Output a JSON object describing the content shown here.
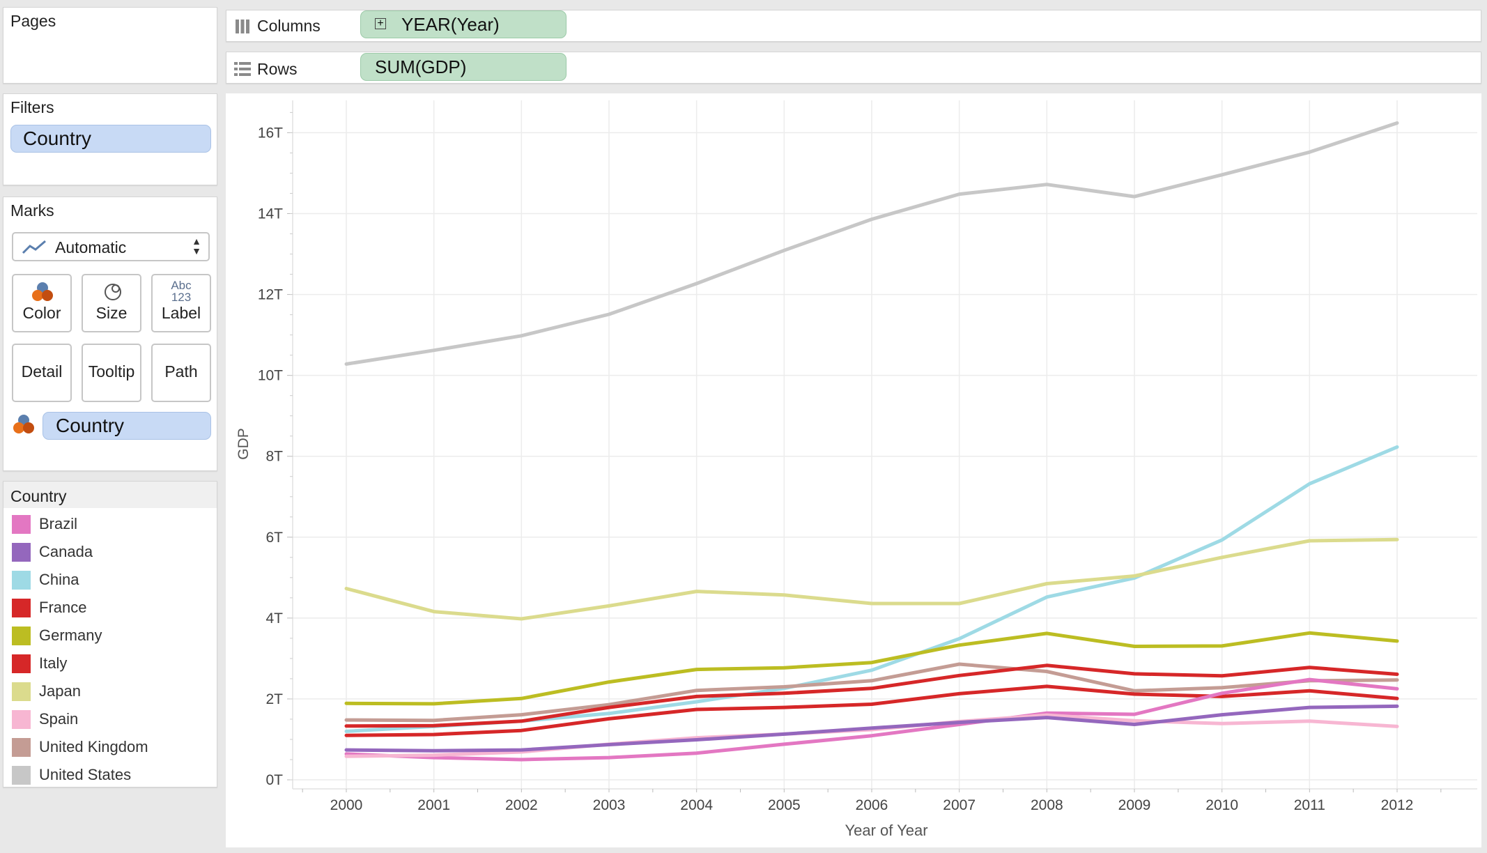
{
  "pages": {
    "title": "Pages"
  },
  "filters": {
    "title": "Filters",
    "pill": "Country"
  },
  "marks": {
    "title": "Marks",
    "type_select": "Automatic",
    "buttons": {
      "color": "Color",
      "size": "Size",
      "label": "Label",
      "label_icon": "Abc\n123",
      "detail": "Detail",
      "tooltip": "Tooltip",
      "path": "Path"
    },
    "color_pill": "Country"
  },
  "legend": {
    "title": "Country",
    "items": [
      {
        "name": "Brazil",
        "color": "#e377c2"
      },
      {
        "name": "Canada",
        "color": "#9467bd"
      },
      {
        "name": "China",
        "color": "#9edae5"
      },
      {
        "name": "France",
        "color": "#d62728"
      },
      {
        "name": "Germany",
        "color": "#bcbd22"
      },
      {
        "name": "Italy",
        "color": "#d62728"
      },
      {
        "name": "Japan",
        "color": "#dbdb8d"
      },
      {
        "name": "Spain",
        "color": "#f7b6d2"
      },
      {
        "name": "United Kingdom",
        "color": "#c49c94"
      },
      {
        "name": "United States",
        "color": "#c7c7c7"
      }
    ]
  },
  "shelves": {
    "columns_label": "Columns",
    "columns_pill": "YEAR(Year)",
    "rows_label": "Rows",
    "rows_pill": "SUM(GDP)"
  },
  "chart_data": {
    "type": "line",
    "xlabel": "Year of Year",
    "ylabel": "GDP",
    "x": [
      2000,
      2001,
      2002,
      2003,
      2004,
      2005,
      2006,
      2007,
      2008,
      2009,
      2010,
      2011,
      2012
    ],
    "ylim": [
      0,
      16.8
    ],
    "yticks": [
      0,
      2,
      4,
      6,
      8,
      10,
      12,
      14,
      16
    ],
    "ytick_labels": [
      "0T",
      "2T",
      "4T",
      "6T",
      "8T",
      "10T",
      "12T",
      "14T",
      "16T"
    ],
    "grid": true,
    "series": [
      {
        "name": "United States",
        "color": "#c7c7c7",
        "values": [
          10.28,
          10.62,
          10.98,
          11.51,
          12.27,
          13.09,
          13.86,
          14.48,
          14.72,
          14.42,
          14.96,
          15.52,
          16.24
        ]
      },
      {
        "name": "China",
        "color": "#9edae5",
        "values": [
          1.2,
          1.32,
          1.45,
          1.64,
          1.93,
          2.26,
          2.71,
          3.49,
          4.52,
          4.99,
          5.93,
          7.32,
          8.23
        ]
      },
      {
        "name": "Japan",
        "color": "#dbdb8d",
        "values": [
          4.73,
          4.16,
          3.98,
          4.3,
          4.66,
          4.57,
          4.36,
          4.36,
          4.85,
          5.04,
          5.5,
          5.91,
          5.94
        ]
      },
      {
        "name": "Germany",
        "color": "#bcbd22",
        "values": [
          1.89,
          1.88,
          2.01,
          2.42,
          2.73,
          2.77,
          2.9,
          3.33,
          3.62,
          3.3,
          3.31,
          3.63,
          3.43
        ]
      },
      {
        "name": "United Kingdom",
        "color": "#c49c94",
        "values": [
          1.48,
          1.47,
          1.61,
          1.86,
          2.21,
          2.3,
          2.45,
          2.86,
          2.68,
          2.2,
          2.28,
          2.45,
          2.47
        ]
      },
      {
        "name": "France",
        "color": "#d62728",
        "values": [
          1.33,
          1.34,
          1.45,
          1.79,
          2.06,
          2.14,
          2.26,
          2.58,
          2.83,
          2.62,
          2.57,
          2.78,
          2.61
        ]
      },
      {
        "name": "Italy",
        "color": "#d62728",
        "values": [
          1.1,
          1.12,
          1.22,
          1.51,
          1.74,
          1.79,
          1.87,
          2.13,
          2.31,
          2.12,
          2.06,
          2.2,
          2.01
        ]
      },
      {
        "name": "Brazil",
        "color": "#e377c2",
        "values": [
          0.64,
          0.55,
          0.5,
          0.55,
          0.66,
          0.88,
          1.09,
          1.37,
          1.65,
          1.62,
          2.14,
          2.48,
          2.25
        ]
      },
      {
        "name": "Spain",
        "color": "#f7b6d2",
        "values": [
          0.58,
          0.61,
          0.69,
          0.88,
          1.04,
          1.13,
          1.24,
          1.44,
          1.6,
          1.46,
          1.39,
          1.45,
          1.32
        ]
      },
      {
        "name": "Canada",
        "color": "#9467bd",
        "values": [
          0.74,
          0.72,
          0.74,
          0.87,
          0.99,
          1.13,
          1.28,
          1.42,
          1.54,
          1.37,
          1.61,
          1.79,
          1.82
        ]
      }
    ]
  }
}
